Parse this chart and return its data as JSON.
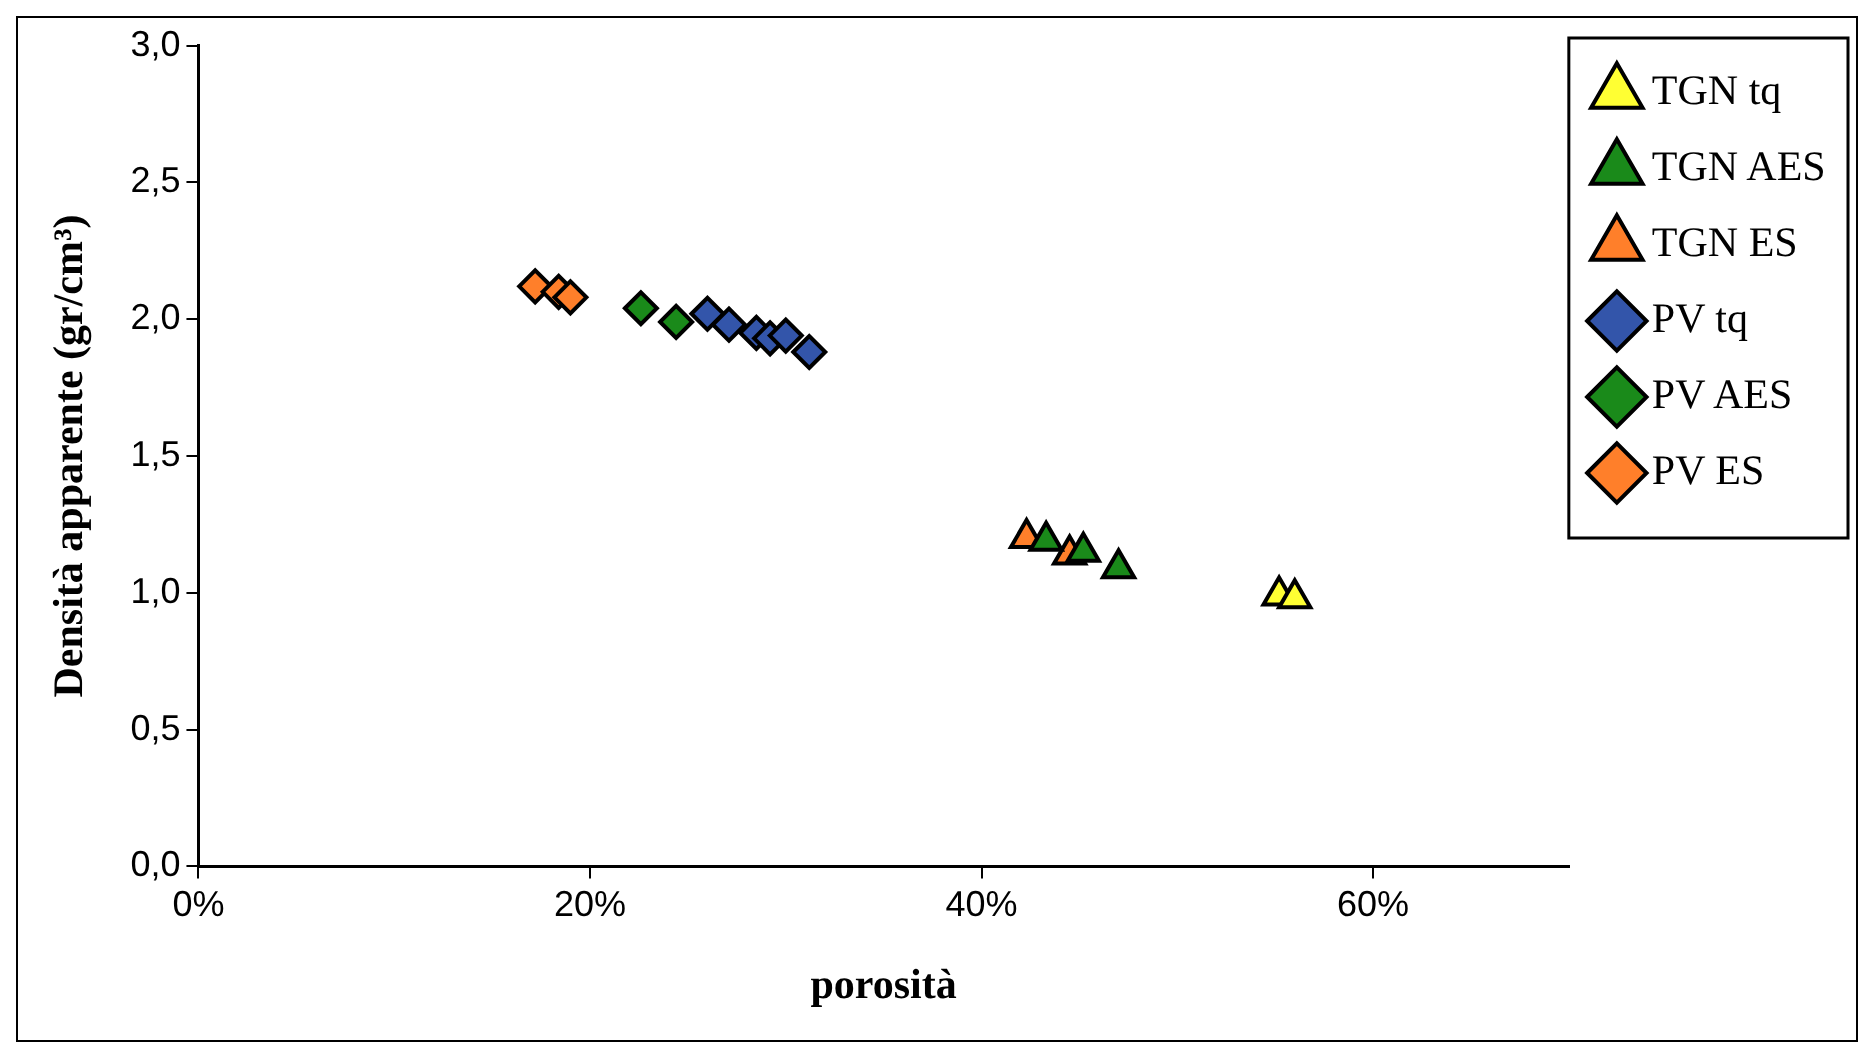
{
  "chart_data": {
    "type": "scatter",
    "xlabel": "porosità",
    "ylabel": "Densità apparente (gr/cm³)",
    "xlim": [
      0,
      70
    ],
    "xticks": [
      {
        "value": 0,
        "label": "0%"
      },
      {
        "value": 20,
        "label": "20%"
      },
      {
        "value": 40,
        "label": "40%"
      },
      {
        "value": 60,
        "label": "60%"
      }
    ],
    "ylim": [
      0,
      3
    ],
    "yticks": [
      {
        "value": 0,
        "label": "0,0"
      },
      {
        "value": 0.5,
        "label": "0,5"
      },
      {
        "value": 1,
        "label": "1,0"
      },
      {
        "value": 1.5,
        "label": "1,5"
      },
      {
        "value": 2,
        "label": "2,0"
      },
      {
        "value": 2.5,
        "label": "2,5"
      },
      {
        "value": 3,
        "label": "3,0"
      }
    ],
    "grid": false,
    "legend": "top right",
    "series": [
      {
        "name": "TGN tq",
        "color": "#ffff33",
        "marker": "triangle",
        "x": [
          55.2,
          56.0
        ],
        "values": [
          0.99,
          0.98
        ]
      },
      {
        "name": "TGN AES",
        "color": "#1a8a1a",
        "marker": "triangle",
        "x": [
          43.3,
          45.2,
          47.0
        ],
        "values": [
          1.19,
          1.15,
          1.09
        ]
      },
      {
        "name": "TGN ES",
        "color": "#ff7f2a",
        "marker": "triangle",
        "x": [
          42.3,
          44.5
        ],
        "values": [
          1.2,
          1.14
        ]
      },
      {
        "name": "PV tq",
        "color": "#3355aa",
        "marker": "diamond",
        "x": [
          26.0,
          27.1,
          28.5,
          29.2,
          30.0,
          31.2
        ],
        "values": [
          2.02,
          1.98,
          1.95,
          1.93,
          1.94,
          1.88
        ]
      },
      {
        "name": "PV AES",
        "color": "#1a8a1a",
        "marker": "diamond",
        "x": [
          22.6,
          24.1,
          24.4
        ],
        "values": [
          2.04,
          null,
          1.99
        ]
      },
      {
        "name": "PV ES",
        "color": "#ff7f2a",
        "marker": "diamond",
        "x": [
          17.2,
          18.4,
          19.0
        ],
        "values": [
          2.12,
          2.1,
          2.08
        ]
      }
    ]
  }
}
